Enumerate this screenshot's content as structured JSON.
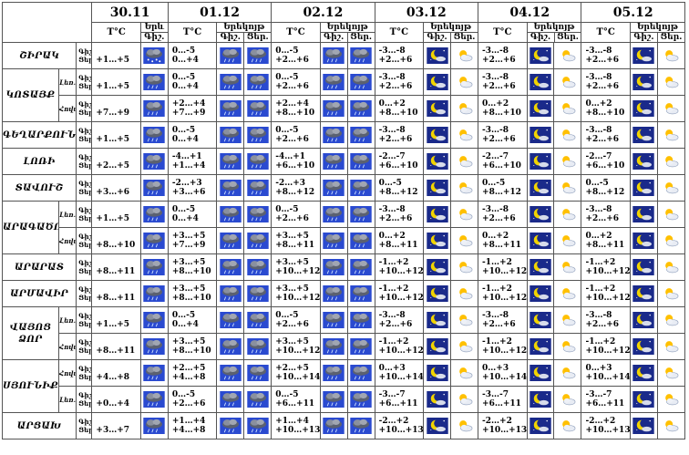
{
  "dates": [
    "30.11",
    "01.12",
    "02.12",
    "03.12",
    "04.12",
    "05.12"
  ],
  "header": {
    "temp": "T°C",
    "evening": "Երեկոյթ",
    "evening_short": "Երև",
    "night": "Գիշ.",
    "day": "Ցեր."
  },
  "row_labels": {
    "night": "Գիշ.",
    "day": "Ցեր."
  },
  "regions": [
    {
      "name": "ՇԻՐԱԿ",
      "subs": [
        {
          "sub": "",
          "t": [
            [
              "+1…+5"
            ],
            [
              "0…-5",
              "0…+4"
            ],
            [
              "0…-5",
              "+2…+6"
            ],
            [
              "-3…-8",
              "+2…+6"
            ],
            [
              "-3…-8",
              "+2…+6"
            ],
            [
              "-3…-8",
              "+2…+6"
            ]
          ]
        }
      ]
    },
    {
      "name": "ԿՈՏԱՅՔ",
      "subs": [
        {
          "sub": "Լեռ.",
          "t": [
            [
              "+1…+5"
            ],
            [
              "0…-5",
              "0…+4"
            ],
            [
              "0…-5",
              "+2…+6"
            ],
            [
              "-3…-8",
              "+2…+6"
            ],
            [
              "-3…-8",
              "+2…+6"
            ],
            [
              "-3…-8",
              "+2…+6"
            ]
          ]
        },
        {
          "sub": "Հովտ.",
          "t": [
            [
              "+7…+9"
            ],
            [
              "+2…+4",
              "+7…+9"
            ],
            [
              "+2…+4",
              "+8…+10"
            ],
            [
              "0…+2",
              "+8…+10"
            ],
            [
              "0…+2",
              "+8…+10"
            ],
            [
              "0…+2",
              "+8…+10"
            ]
          ]
        }
      ]
    },
    {
      "name": "ԳԵՂԱՐՔՈՒՆԻՔ",
      "subs": [
        {
          "sub": "",
          "t": [
            [
              "+1…+5"
            ],
            [
              "0…-5",
              "0…+4"
            ],
            [
              "0…-5",
              "+2…+6"
            ],
            [
              "-3…-8",
              "+2…+6"
            ],
            [
              "-3…-8",
              "+2…+6"
            ],
            [
              "-3…-8",
              "+2…+6"
            ]
          ]
        }
      ]
    },
    {
      "name": "ԼՈՌԻ",
      "subs": [
        {
          "sub": "",
          "t": [
            [
              "+2…+5"
            ],
            [
              "-4…+1",
              "+1…+4"
            ],
            [
              "-4…+1",
              "+6…+10"
            ],
            [
              "-2…-7",
              "+6…+10"
            ],
            [
              "-2…-7",
              "+6…+10"
            ],
            [
              "-2…-7",
              "+6…+10"
            ]
          ]
        }
      ]
    },
    {
      "name": "ՏԱՎՈՒՇ",
      "subs": [
        {
          "sub": "",
          "t": [
            [
              "+3…+6"
            ],
            [
              "-2…+3",
              "+3…+6"
            ],
            [
              "-2…+3",
              "+8…+12"
            ],
            [
              "0…-5",
              "+8…+12"
            ],
            [
              "0…-5",
              "+8…+12"
            ],
            [
              "0…-5",
              "+8…+12"
            ]
          ]
        }
      ]
    },
    {
      "name": "ԱՐԱԳԱԾՈՏՆ",
      "subs": [
        {
          "sub": "Լեռ.",
          "t": [
            [
              "+1…+5"
            ],
            [
              "0…-5",
              "0…+4"
            ],
            [
              "0…-5",
              "+2…+6"
            ],
            [
              "-3…-8",
              "+2…+6"
            ],
            [
              "-3…-8",
              "+2…+6"
            ],
            [
              "-3…-8",
              "+2…+6"
            ]
          ]
        },
        {
          "sub": "Հովտ.",
          "t": [
            [
              "+8…+10"
            ],
            [
              "+3…+5",
              "+7…+9"
            ],
            [
              "+3…+5",
              "+8…+11"
            ],
            [
              "0…+2",
              "+8…+11"
            ],
            [
              "0…+2",
              "+8…+11"
            ],
            [
              "0…+2",
              "+8…+11"
            ]
          ]
        }
      ]
    },
    {
      "name": "ԱՐԱՐԱՏ",
      "subs": [
        {
          "sub": "",
          "t": [
            [
              "+8…+11"
            ],
            [
              "+3…+5",
              "+8…+10"
            ],
            [
              "+3…+5",
              "+10…+12"
            ],
            [
              "-1…+2",
              "+10…+12"
            ],
            [
              "-1…+2",
              "+10…+12"
            ],
            [
              "-1…+2",
              "+10…+12"
            ]
          ]
        }
      ]
    },
    {
      "name": "ԱՐՄԱՎԻՐ",
      "subs": [
        {
          "sub": "",
          "t": [
            [
              "+8…+11"
            ],
            [
              "+3…+5",
              "+8…+10"
            ],
            [
              "+3…+5",
              "+10…+12"
            ],
            [
              "-1…+2",
              "+10…+12"
            ],
            [
              "-1…+2",
              "+10…+12"
            ],
            [
              "-1…+2",
              "+10…+12"
            ]
          ]
        }
      ]
    },
    {
      "name": "ՎԱՅՈՑ ՁՈՐ",
      "subs": [
        {
          "sub": "Լեռ.",
          "t": [
            [
              "+1…+5"
            ],
            [
              "0…-5",
              "0…+4"
            ],
            [
              "0…-5",
              "+2…+6"
            ],
            [
              "-3…-8",
              "+2…+6"
            ],
            [
              "-3…-8",
              "+2…+6"
            ],
            [
              "-3…-8",
              "+2…+6"
            ]
          ]
        },
        {
          "sub": "Հովտ.",
          "t": [
            [
              "+8…+11"
            ],
            [
              "+3…+5",
              "+8…+10"
            ],
            [
              "+3…+5",
              "+10…+12"
            ],
            [
              "-1…+2",
              "+10…+12"
            ],
            [
              "-1…+2",
              "+10…+12"
            ],
            [
              "-1…+2",
              "+10…+12"
            ]
          ]
        }
      ]
    },
    {
      "name": "ՍՅՈՒՆԻՔ",
      "subs": [
        {
          "sub": "Հովտ.",
          "t": [
            [
              "+4…+8"
            ],
            [
              "+2…+5",
              "+4…+8"
            ],
            [
              "+2…+5",
              "+10…+14"
            ],
            [
              "0…+3",
              "+10…+14"
            ],
            [
              "0…+3",
              "+10…+14"
            ],
            [
              "0…+3",
              "+10…+14"
            ]
          ]
        },
        {
          "sub": "Լեռ.",
          "t": [
            [
              "+0…+4"
            ],
            [
              "0…-5",
              "+2…+6"
            ],
            [
              "0…-5",
              "+6…+11"
            ],
            [
              "-3…-7",
              "+6…+11"
            ],
            [
              "-3…-7",
              "+6…+11"
            ],
            [
              "-3…-7",
              "+6…+11"
            ]
          ]
        }
      ]
    },
    {
      "name": "ԱՐՑԱԽ",
      "subs": [
        {
          "sub": "",
          "t": [
            [
              "+3…+7"
            ],
            [
              "+1…+4",
              "+4…+8"
            ],
            [
              "+1…+4",
              "+10…+13"
            ],
            [
              "-2…+2",
              "+10…+13"
            ],
            [
              "-2…+2",
              "+10…+13"
            ],
            [
              "-2…+2",
              "+10…+13"
            ]
          ]
        }
      ]
    }
  ],
  "icons": {
    "day0": [
      "snow-cloud-icon",
      "rain-cloud-icon",
      "rain-cloud-icon",
      "rain-cloud-icon",
      "rain-cloud-icon",
      "rain-cloud-icon",
      "rain-cloud-icon",
      "rain-cloud-icon",
      "rain-cloud-icon",
      "rain-cloud-icon",
      "rain-cloud-icon",
      "rain-cloud-icon",
      "rain-cloud-icon",
      "rain-cloud-icon"
    ],
    "later_night": "moon-cloud-icon",
    "later_day": "sun-cloud-icon"
  },
  "colors": {
    "border": "#555555",
    "sky": "#2a4ad0",
    "night": "#1a2a8a",
    "moon": "#f2d400",
    "sun": "#ffc000"
  }
}
